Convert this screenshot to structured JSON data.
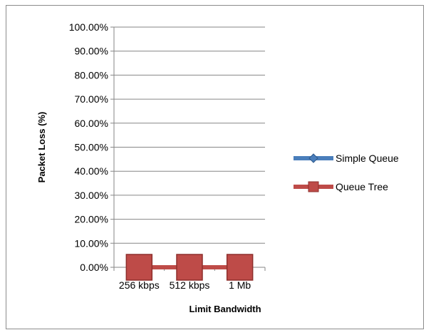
{
  "chart_data": {
    "type": "line",
    "categories": [
      "256 kbps",
      "512 kbps",
      "1 Mb"
    ],
    "series": [
      {
        "name": "Simple Queue",
        "values": [
          0,
          0,
          0
        ],
        "color": "#4a7ebb",
        "marker": "diamond"
      },
      {
        "name": "Queue Tree",
        "values": [
          0,
          0,
          0
        ],
        "color": "#be4b48",
        "marker": "square"
      }
    ],
    "xlabel": "Limit Bandwidth",
    "ylabel": "Packet Loss (%)",
    "ylim": [
      0,
      1
    ],
    "yticks": [
      "0.00%",
      "10.00%",
      "20.00%",
      "30.00%",
      "40.00%",
      "50.00%",
      "60.00%",
      "70.00%",
      "80.00%",
      "90.00%",
      "100.00%"
    ],
    "grid": true,
    "legend_position": "right"
  }
}
